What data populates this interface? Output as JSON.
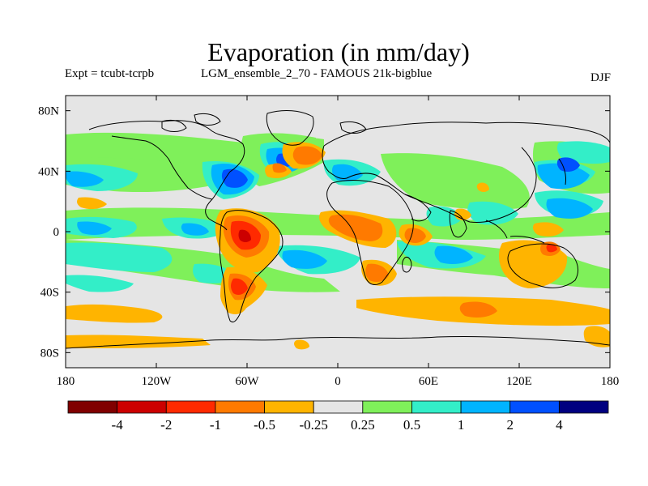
{
  "title": "Evaporation (in mm/day)",
  "subtitle_left": "Expt = tcubt-tcrpb",
  "subtitle_center": "LGM_ensemble_2_70 - FAMOUS 21k-bigblue",
  "season": "DJF",
  "axes": {
    "x_ticks": [
      {
        "value": -180,
        "label": "180"
      },
      {
        "value": -120,
        "label": "120W"
      },
      {
        "value": -60,
        "label": "60W"
      },
      {
        "value": 0,
        "label": "0"
      },
      {
        "value": 60,
        "label": "60E"
      },
      {
        "value": 120,
        "label": "120E"
      },
      {
        "value": 180,
        "label": "180"
      }
    ],
    "y_ticks": [
      {
        "value": 80,
        "label": "80N"
      },
      {
        "value": 40,
        "label": "40N"
      },
      {
        "value": 0,
        "label": "0"
      },
      {
        "value": -40,
        "label": "40S"
      },
      {
        "value": -80,
        "label": "80S"
      }
    ],
    "xlim": [
      -180,
      180
    ],
    "ylim": [
      -90,
      90
    ]
  },
  "colorbar": {
    "colors": [
      "#800000",
      "#cc0000",
      "#ff2a00",
      "#ff7a00",
      "#ffb400",
      "#e5e5e5",
      "#7ff05a",
      "#33eec8",
      "#00b4ff",
      "#0050ff",
      "#000080"
    ],
    "labels": [
      "-4",
      "-2",
      "-1",
      "-0.5",
      "-0.25",
      "0.25",
      "0.5",
      "1",
      "2",
      "4"
    ]
  },
  "colors": {
    "background": "#e5e5e5",
    "coastline": "#000000"
  }
}
